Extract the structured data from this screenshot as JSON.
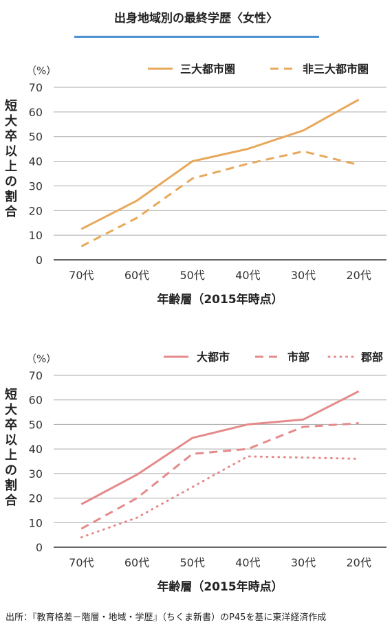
{
  "title": "出身地域別の最終学歴〈女性〉",
  "source": "出所：『教育格差－階層・地域・学歴』（ちくま新書）のP45を基に東洋経済作成",
  "colors": {
    "orange": "#e8a85a",
    "pink": "#e58a8a",
    "grid": "#aaaaaa",
    "axis": "#333333"
  },
  "chart_data": [
    {
      "type": "line",
      "ylabel": "短大卒以上の割合",
      "yunit": "（%）",
      "xlabel": "年齢層（2015年時点）",
      "categories": [
        "70代",
        "60代",
        "50代",
        "40代",
        "30代",
        "20代"
      ],
      "ylim": [
        0,
        70
      ],
      "yticks": [
        0,
        10,
        20,
        30,
        40,
        50,
        60,
        70
      ],
      "grid": true,
      "legend": "top-right",
      "series": [
        {
          "name": "三大都市圏",
          "style": "solid",
          "color": "#e8a85a",
          "values": [
            12.5,
            24,
            40,
            45,
            52.5,
            65
          ]
        },
        {
          "name": "非三大都市圏",
          "style": "dashed",
          "color": "#e8a85a",
          "values": [
            5.5,
            17,
            33,
            39,
            44,
            38.5
          ]
        }
      ]
    },
    {
      "type": "line",
      "ylabel": "短大卒以上の割合",
      "yunit": "（%）",
      "xlabel": "年齢層（2015年時点）",
      "categories": [
        "70代",
        "60代",
        "50代",
        "40代",
        "30代",
        "20代"
      ],
      "ylim": [
        0,
        70
      ],
      "yticks": [
        0,
        10,
        20,
        30,
        40,
        50,
        60,
        70
      ],
      "grid": true,
      "legend": "top-right",
      "series": [
        {
          "name": "大都市",
          "style": "solid",
          "color": "#e58a8a",
          "values": [
            17.5,
            29.5,
            44.5,
            50,
            52,
            63.5
          ]
        },
        {
          "name": "市部",
          "style": "dashed",
          "color": "#e58a8a",
          "values": [
            7.5,
            20,
            38,
            40,
            49,
            50.5
          ]
        },
        {
          "name": "郡部",
          "style": "dotted",
          "color": "#e58a8a",
          "values": [
            4,
            12,
            24.5,
            37,
            36.5,
            36
          ]
        }
      ]
    }
  ]
}
